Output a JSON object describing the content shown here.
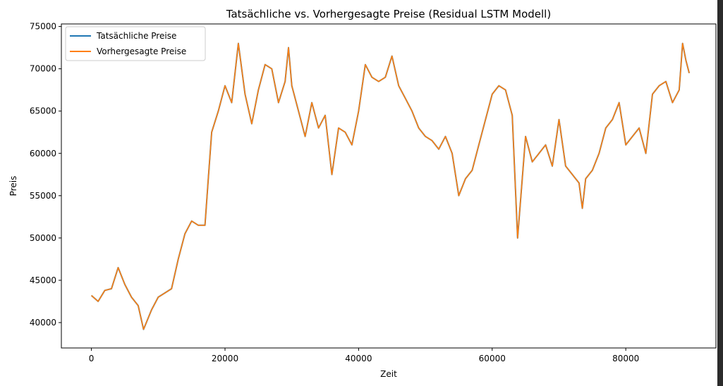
{
  "chart_data": {
    "type": "line",
    "title": "Tatsächliche vs. Vorhergesagte Preise (Residual LSTM Modell)",
    "xlabel": "Zeit",
    "ylabel": "Preis",
    "xlim": [
      -4500,
      93500
    ],
    "ylim": [
      37000,
      75300
    ],
    "xticks": [
      0,
      20000,
      40000,
      60000,
      80000
    ],
    "yticks": [
      40000,
      45000,
      50000,
      55000,
      60000,
      65000,
      70000,
      75000
    ],
    "xtick_labels": [
      "0",
      "20000",
      "40000",
      "60000",
      "80000"
    ],
    "ytick_labels": [
      "40000",
      "45000",
      "50000",
      "55000",
      "60000",
      "65000",
      "70000",
      "75000"
    ],
    "grid": false,
    "legend_position": "upper left",
    "series": [
      {
        "name": "Tatsächliche Preise",
        "color": "#1f77b4",
        "x": [
          0,
          1000,
          2000,
          3000,
          4000,
          5000,
          6000,
          7000,
          7800,
          9000,
          10000,
          11000,
          12000,
          13000,
          14000,
          15000,
          16000,
          17000,
          17500,
          18000,
          19000,
          20000,
          21000,
          22000,
          23000,
          24000,
          25000,
          26000,
          27000,
          28000,
          29000,
          29500,
          30000,
          31000,
          32000,
          33000,
          34000,
          35000,
          36000,
          37000,
          38000,
          39000,
          40000,
          41000,
          42000,
          43000,
          44000,
          45000,
          46000,
          47000,
          48000,
          49000,
          50000,
          51000,
          52000,
          53000,
          54000,
          55000,
          56000,
          57000,
          58000,
          59000,
          60000,
          61000,
          62000,
          63000,
          63800,
          64500,
          65000,
          66000,
          67000,
          68000,
          69000,
          70000,
          71000,
          72000,
          73000,
          73500,
          74000,
          75000,
          76000,
          77000,
          78000,
          79000,
          80000,
          81000,
          82000,
          83000,
          84000,
          85000,
          86000,
          87000,
          88000,
          88500,
          89000,
          89500
        ],
        "y": [
          43200,
          42500,
          43800,
          44000,
          46500,
          44500,
          43000,
          42000,
          39200,
          41500,
          43000,
          43500,
          44000,
          47500,
          50500,
          52000,
          51500,
          51500,
          57000,
          62500,
          65000,
          68000,
          66000,
          73000,
          67000,
          63500,
          67500,
          70500,
          70000,
          66000,
          68500,
          72500,
          68000,
          65000,
          62000,
          66000,
          63000,
          64500,
          57500,
          63000,
          62500,
          61000,
          65000,
          70500,
          69000,
          68500,
          69000,
          71500,
          68000,
          66500,
          65000,
          63000,
          62000,
          61500,
          60500,
          62000,
          60000,
          55000,
          57000,
          58000,
          61000,
          64000,
          67000,
          68000,
          67500,
          64500,
          50000,
          57000,
          62000,
          59000,
          60000,
          61000,
          58500,
          64000,
          58500,
          57500,
          56500,
          53500,
          57000,
          58000,
          60000,
          63000,
          64000,
          66000,
          61000,
          62000,
          63000,
          60000,
          67000,
          68000,
          68500,
          66000,
          67500,
          73000,
          71000,
          69500
        ]
      },
      {
        "name": "Vorhergesagte Preise",
        "color": "#ff7f0e",
        "x": [
          0,
          1000,
          2000,
          3000,
          4000,
          5000,
          6000,
          7000,
          7800,
          9000,
          10000,
          11000,
          12000,
          13000,
          14000,
          15000,
          16000,
          17000,
          17500,
          18000,
          19000,
          20000,
          21000,
          22000,
          23000,
          24000,
          25000,
          26000,
          27000,
          28000,
          29000,
          29500,
          30000,
          31000,
          32000,
          33000,
          34000,
          35000,
          36000,
          37000,
          38000,
          39000,
          40000,
          41000,
          42000,
          43000,
          44000,
          45000,
          46000,
          47000,
          48000,
          49000,
          50000,
          51000,
          52000,
          53000,
          54000,
          55000,
          56000,
          57000,
          58000,
          59000,
          60000,
          61000,
          62000,
          63000,
          63800,
          64500,
          65000,
          66000,
          67000,
          68000,
          69000,
          70000,
          71000,
          72000,
          73000,
          73500,
          74000,
          75000,
          76000,
          77000,
          78000,
          79000,
          80000,
          81000,
          82000,
          83000,
          84000,
          85000,
          86000,
          87000,
          88000,
          88500,
          89000,
          89500
        ],
        "y": [
          43200,
          42500,
          43800,
          44000,
          46500,
          44500,
          43000,
          42000,
          39200,
          41500,
          43000,
          43500,
          44000,
          47500,
          50500,
          52000,
          51500,
          51500,
          57000,
          62500,
          65000,
          68000,
          66000,
          73000,
          67000,
          63500,
          67500,
          70500,
          70000,
          66000,
          68500,
          72500,
          68000,
          65000,
          62000,
          66000,
          63000,
          64500,
          57500,
          63000,
          62500,
          61000,
          65000,
          70500,
          69000,
          68500,
          69000,
          71500,
          68000,
          66500,
          65000,
          63000,
          62000,
          61500,
          60500,
          62000,
          60000,
          55000,
          57000,
          58000,
          61000,
          64000,
          67000,
          68000,
          67500,
          64500,
          50000,
          57000,
          62000,
          59000,
          60000,
          61000,
          58500,
          64000,
          58500,
          57500,
          56500,
          53500,
          57000,
          58000,
          60000,
          63000,
          64000,
          66000,
          61000,
          62000,
          63000,
          60000,
          67000,
          68000,
          68500,
          66000,
          67500,
          73000,
          71000,
          69500
        ]
      }
    ]
  }
}
